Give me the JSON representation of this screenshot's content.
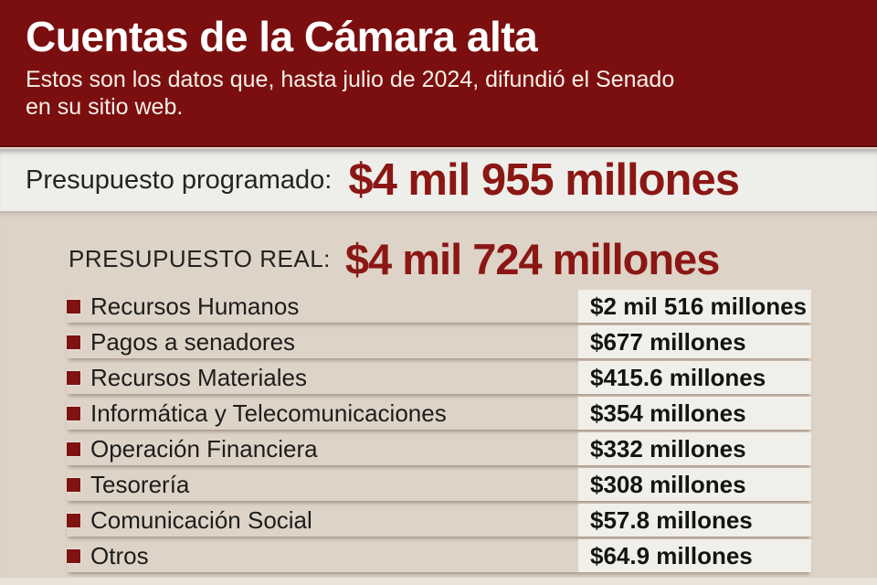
{
  "header": {
    "title": "Cuentas de la Cámara alta",
    "subtitle_line1": "Estos son los datos que, hasta julio de 2024, difundió el Senado",
    "subtitle_line2": "en su sitio web."
  },
  "programmed": {
    "label": "Presupuesto programado:",
    "amount": "$4 mil 955 millones"
  },
  "real": {
    "label": "PRESUPUESTO REAL:",
    "amount": "$4 mil 724 millones"
  },
  "breakdown": [
    {
      "label": "Recursos Humanos",
      "value": "$2 mil 516 millones"
    },
    {
      "label": "Pagos a senadores",
      "value": "$677 millones"
    },
    {
      "label": "Recursos Materiales",
      "value": "$415.6 millones"
    },
    {
      "label": "Informática y Telecomunicaciones",
      "value": "$354 millones"
    },
    {
      "label": "Operación Financiera",
      "value": "$332 millones"
    },
    {
      "label": "Tesorería",
      "value": "$308 millones"
    },
    {
      "label": "Comunicación Social",
      "value": "$57.8 millones"
    },
    {
      "label": "Otros",
      "value": "$64.9 millones"
    }
  ],
  "chart_data": {
    "type": "table",
    "title": "Cuentas de la Cámara alta",
    "subtitle": "Estos son los datos que, hasta julio de 2024, difundió el Senado en su sitio web.",
    "summary": [
      {
        "label": "Presupuesto programado",
        "value_millones": 4955,
        "display": "$4 mil 955 millones"
      },
      {
        "label": "Presupuesto real",
        "value_millones": 4724,
        "display": "$4 mil 724 millones"
      }
    ],
    "categories": [
      "Recursos Humanos",
      "Pagos a senadores",
      "Recursos Materiales",
      "Informática y Telecomunicaciones",
      "Operación Financiera",
      "Tesorería",
      "Comunicación Social",
      "Otros"
    ],
    "values_millones": [
      2516,
      677,
      415.6,
      354,
      332,
      308,
      57.8,
      64.9
    ],
    "unit": "millones de pesos"
  },
  "colors": {
    "header_bg": "#7b0f0f",
    "accent_red": "#8b1714",
    "bullet_red": "#7e1312",
    "band_light": "#eeefea",
    "band_beige": "#ded3c7",
    "value_box_bg": "#f1efe9",
    "text_dark": "#1d1d1b",
    "text_white": "#ffffff"
  }
}
